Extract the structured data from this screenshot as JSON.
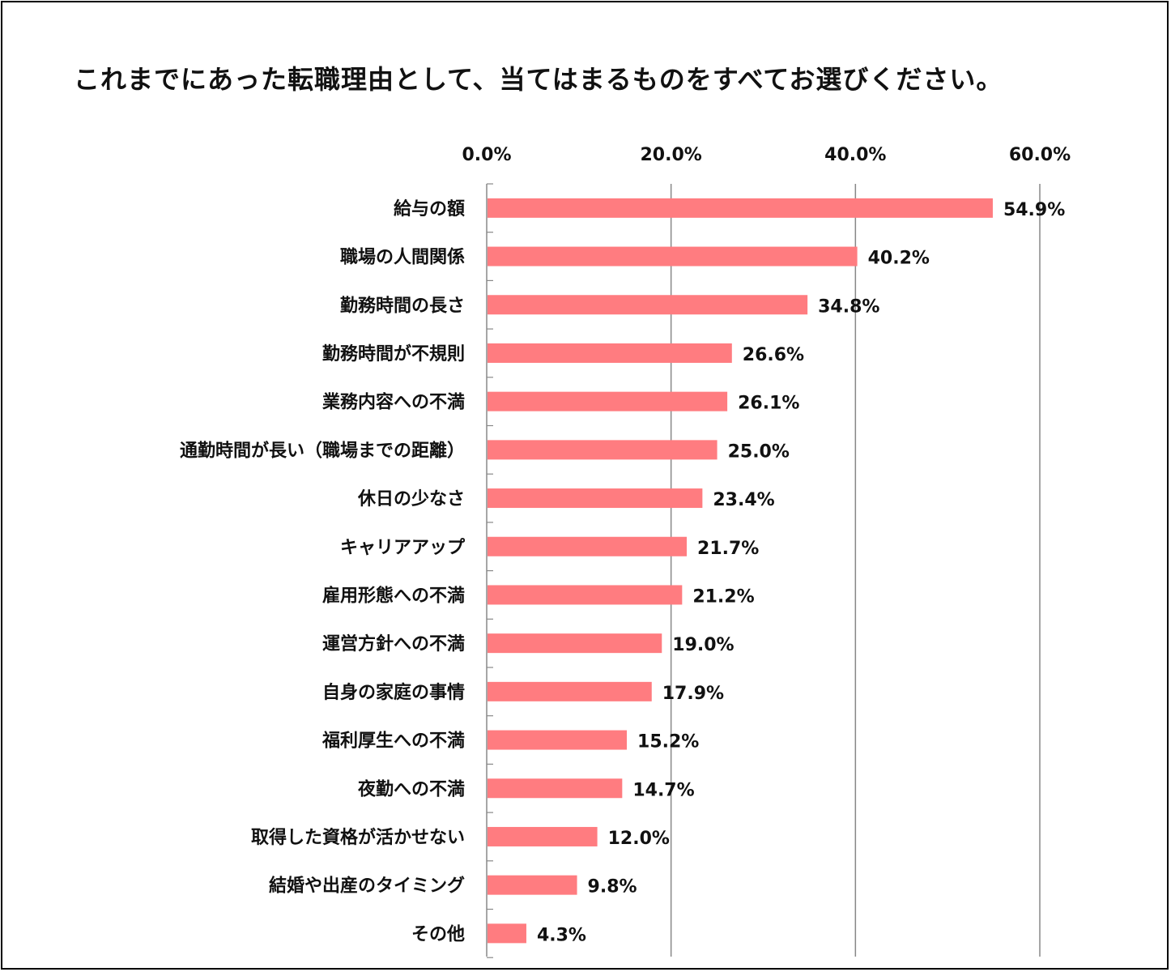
{
  "chart_data": {
    "type": "bar",
    "orientation": "horizontal",
    "title": "これまでにあった転職理由として、当てはまるものをすべてお選びください。",
    "categories": [
      "給与の額",
      "職場の人間関係",
      "勤務時間の長さ",
      "勤務時間が不規則",
      "業務内容への不満",
      "通勤時間が長い（職場までの距離）",
      "休日の少なさ",
      "キャリアアップ",
      "雇用形態への不満",
      "運営方針への不満",
      "自身の家庭の事情",
      "福利厚生への不満",
      "夜勤への不満",
      "取得した資格が活かせない",
      "結婚や出産のタイミング",
      "その他"
    ],
    "values": [
      54.9,
      40.2,
      34.8,
      26.6,
      26.1,
      25.0,
      23.4,
      21.7,
      21.2,
      19.0,
      17.9,
      15.2,
      14.7,
      12.0,
      9.8,
      4.3
    ],
    "value_labels": [
      "54.9%",
      "40.2%",
      "34.8%",
      "26.6%",
      "26.1%",
      "25.0%",
      "23.4%",
      "21.7%",
      "21.2%",
      "19.0%",
      "17.9%",
      "15.2%",
      "14.7%",
      "12.0%",
      "9.8%",
      "4.3%"
    ],
    "xlim": [
      0,
      60
    ],
    "x_ticks": [
      0,
      20,
      40,
      60
    ],
    "x_tick_labels": [
      "0.0%",
      "20.0%",
      "40.0%",
      "60.0%"
    ],
    "xlabel": "",
    "ylabel": "",
    "axis_position": "top",
    "grid": "vertical",
    "legend": "none",
    "colors": {
      "bar": "#ff7c80",
      "grid": "#888888",
      "axis": "#888888",
      "text": "#111111"
    }
  }
}
